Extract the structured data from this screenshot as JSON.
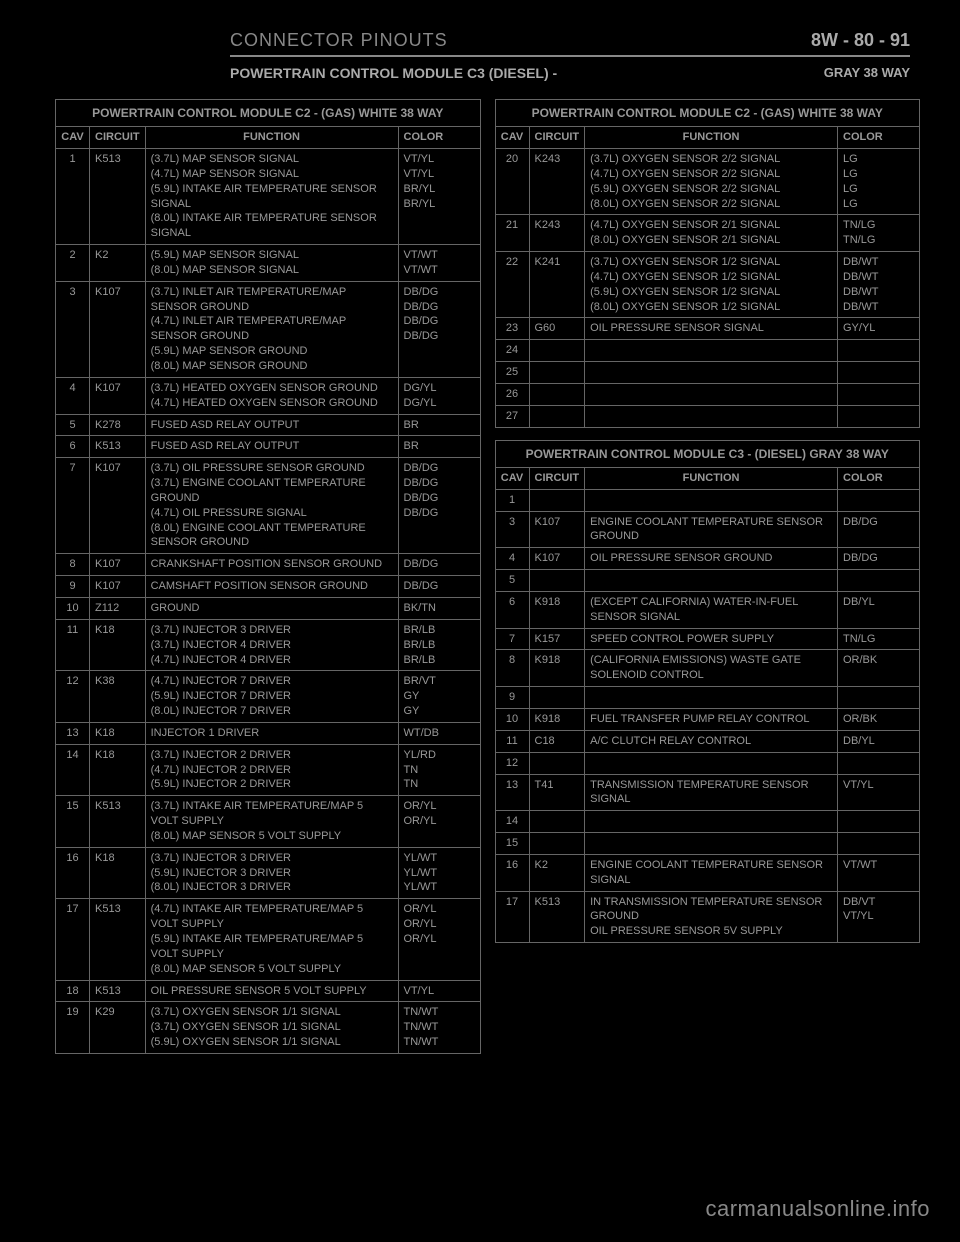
{
  "header": {
    "section": "CONNECTOR PINOUTS",
    "page": "8W - 80 - 91"
  },
  "titleRow": {
    "left": "POWERTRAIN CONTROL MODULE C3 (DIESEL) - ",
    "right": "GRAY 38 WAY"
  },
  "tableA": {
    "title": "POWERTRAIN CONTROL MODULE C2 - (GAS) WHITE 38 WAY",
    "heads": [
      "CAV",
      "CIRCUIT",
      "FUNCTION",
      "COLOR"
    ],
    "rows": [
      [
        "1",
        "K513",
        "(3.7L) MAP SENSOR SIGNAL\n(4.7L) MAP SENSOR SIGNAL\n(5.9L) INTAKE AIR TEMPERATURE SENSOR SIGNAL\n(8.0L) INTAKE AIR TEMPERATURE SENSOR SIGNAL",
        "VT/YL\nVT/YL\nBR/YL\nBR/YL"
      ],
      [
        "2",
        "K2",
        "(5.9L) MAP SENSOR SIGNAL\n(8.0L) MAP SENSOR SIGNAL",
        "VT/WT\nVT/WT"
      ],
      [
        "3",
        "K107",
        "(3.7L) INLET AIR TEMPERATURE/MAP SENSOR GROUND\n(4.7L) INLET AIR TEMPERATURE/MAP SENSOR GROUND\n(5.9L) MAP SENSOR GROUND\n(8.0L) MAP SENSOR GROUND",
        "DB/DG\nDB/DG\nDB/DG\nDB/DG"
      ],
      [
        "4",
        "K107",
        "(3.7L) HEATED OXYGEN SENSOR GROUND\n(4.7L) HEATED OXYGEN SENSOR GROUND",
        "DG/YL\nDG/YL"
      ],
      [
        "5",
        "K278",
        "FUSED ASD RELAY OUTPUT",
        "BR"
      ],
      [
        "6",
        "K513",
        "FUSED ASD RELAY OUTPUT",
        "BR"
      ],
      [
        "7",
        "K107",
        "(3.7L) OIL PRESSURE SENSOR GROUND\n(3.7L) ENGINE COOLANT TEMPERATURE GROUND\n(4.7L) OIL PRESSURE SIGNAL\n(8.0L) ENGINE COOLANT TEMPERATURE SENSOR GROUND",
        "DB/DG\nDB/DG\nDB/DG\nDB/DG"
      ],
      [
        "8",
        "K107",
        "CRANKSHAFT POSITION SENSOR GROUND",
        "DB/DG"
      ],
      [
        "9",
        "K107",
        "CAMSHAFT POSITION SENSOR GROUND",
        "DB/DG"
      ],
      [
        "10",
        "Z112",
        "GROUND",
        "BK/TN"
      ],
      [
        "11",
        "K18",
        "(3.7L) INJECTOR 3 DRIVER\n(3.7L) INJECTOR 4 DRIVER\n(4.7L) INJECTOR 4 DRIVER",
        "BR/LB\nBR/LB\nBR/LB"
      ],
      [
        "12",
        "K38",
        "(4.7L) INJECTOR 7 DRIVER\n(5.9L) INJECTOR 7 DRIVER\n(8.0L) INJECTOR 7 DRIVER",
        "BR/VT\nGY\nGY"
      ],
      [
        "13",
        "K18",
        "INJECTOR 1 DRIVER",
        "WT/DB"
      ],
      [
        "14",
        "K18",
        "(3.7L) INJECTOR 2 DRIVER\n(4.7L) INJECTOR 2 DRIVER\n(5.9L) INJECTOR 2 DRIVER",
        "YL/RD\nTN\nTN"
      ],
      [
        "15",
        "K513",
        "(3.7L) INTAKE AIR TEMPERATURE/MAP 5 VOLT SUPPLY\n(8.0L) MAP SENSOR 5 VOLT SUPPLY",
        "OR/YL\nOR/YL"
      ],
      [
        "16",
        "K18",
        "(3.7L) INJECTOR 3 DRIVER\n(5.9L) INJECTOR 3 DRIVER\n(8.0L) INJECTOR 3 DRIVER",
        "YL/WT\nYL/WT\nYL/WT"
      ],
      [
        "17",
        "K513",
        "(4.7L) INTAKE AIR TEMPERATURE/MAP 5 VOLT SUPPLY\n(5.9L) INTAKE AIR TEMPERATURE/MAP 5 VOLT SUPPLY\n(8.0L) MAP SENSOR 5 VOLT SUPPLY",
        "OR/YL\nOR/YL\nOR/YL"
      ],
      [
        "18",
        "K513",
        "OIL PRESSURE SENSOR 5 VOLT SUPPLY",
        "VT/YL"
      ],
      [
        "19",
        "K29",
        "(3.7L) OXYGEN SENSOR 1/1 SIGNAL\n(3.7L) OXYGEN SENSOR 1/1 SIGNAL\n(5.9L) OXYGEN SENSOR 1/1 SIGNAL",
        "TN/WT\nTN/WT\nTN/WT"
      ]
    ]
  },
  "tableB": {
    "title": "POWERTRAIN CONTROL MODULE C2 - (GAS) WHITE 38 WAY",
    "heads": [
      "CAV",
      "CIRCUIT",
      "FUNCTION",
      "COLOR"
    ],
    "rows": [
      [
        "20",
        "K243",
        "(3.7L) OXYGEN SENSOR 2/2 SIGNAL\n(4.7L) OXYGEN SENSOR 2/2 SIGNAL\n(5.9L) OXYGEN SENSOR 2/2 SIGNAL\n(8.0L) OXYGEN SENSOR 2/2 SIGNAL",
        "LG\nLG\nLG\nLG"
      ],
      [
        "21",
        "K243",
        "(4.7L) OXYGEN SENSOR 2/1 SIGNAL\n(8.0L) OXYGEN SENSOR 2/1 SIGNAL",
        "TN/LG\nTN/LG"
      ],
      [
        "22",
        "K241",
        "(3.7L) OXYGEN SENSOR 1/2 SIGNAL\n(4.7L) OXYGEN SENSOR 1/2 SIGNAL\n(5.9L) OXYGEN SENSOR 1/2 SIGNAL\n(8.0L) OXYGEN SENSOR 1/2 SIGNAL",
        "DB/WT\nDB/WT\nDB/WT\nDB/WT"
      ],
      [
        "23",
        "G60",
        "OIL PRESSURE SENSOR SIGNAL",
        "GY/YL"
      ],
      [
        "24",
        "",
        "",
        ""
      ],
      [
        "25",
        "",
        "",
        ""
      ],
      [
        "26",
        "",
        "",
        ""
      ],
      [
        "27",
        "",
        "",
        ""
      ]
    ]
  },
  "tableC": {
    "title": "POWERTRAIN CONTROL MODULE C3 - (DIESEL) GRAY 38 WAY",
    "heads": [
      "CAV",
      "CIRCUIT",
      "FUNCTION",
      "COLOR"
    ],
    "rows": [
      [
        "1",
        "",
        "",
        ""
      ],
      [
        "3",
        "K107",
        "ENGINE COOLANT TEMPERATURE SENSOR GROUND",
        "DB/DG"
      ],
      [
        "4",
        "K107",
        "OIL PRESSURE SENSOR GROUND",
        "DB/DG"
      ],
      [
        "5",
        "",
        "",
        ""
      ],
      [
        "6",
        "K918",
        "(EXCEPT CALIFORNIA) WATER-IN-FUEL SENSOR SIGNAL",
        "DB/YL"
      ],
      [
        "7",
        "K157",
        "SPEED CONTROL POWER SUPPLY",
        "TN/LG"
      ],
      [
        "8",
        "K918",
        "(CALIFORNIA EMISSIONS) WASTE GATE SOLENOID CONTROL",
        "OR/BK"
      ],
      [
        "9",
        "",
        "",
        ""
      ],
      [
        "10",
        "K918",
        "FUEL TRANSFER PUMP RELAY CONTROL",
        "OR/BK"
      ],
      [
        "11",
        "C18",
        "A/C CLUTCH RELAY CONTROL",
        "DB/YL"
      ],
      [
        "12",
        "",
        "",
        ""
      ],
      [
        "13",
        "T41",
        "TRANSMISSION TEMPERATURE SENSOR SIGNAL",
        "VT/YL"
      ],
      [
        "14",
        "",
        "",
        ""
      ],
      [
        "15",
        "",
        "",
        ""
      ],
      [
        "16",
        "K2",
        "ENGINE COOLANT TEMPERATURE SENSOR SIGNAL",
        "VT/WT"
      ],
      [
        "17",
        "K513",
        "IN TRANSMISSION TEMPERATURE SENSOR GROUND\nOIL PRESSURE SENSOR 5V SUPPLY",
        "DB/VT\nVT/YL"
      ]
    ]
  },
  "watermark": "carmanualsonline.info"
}
